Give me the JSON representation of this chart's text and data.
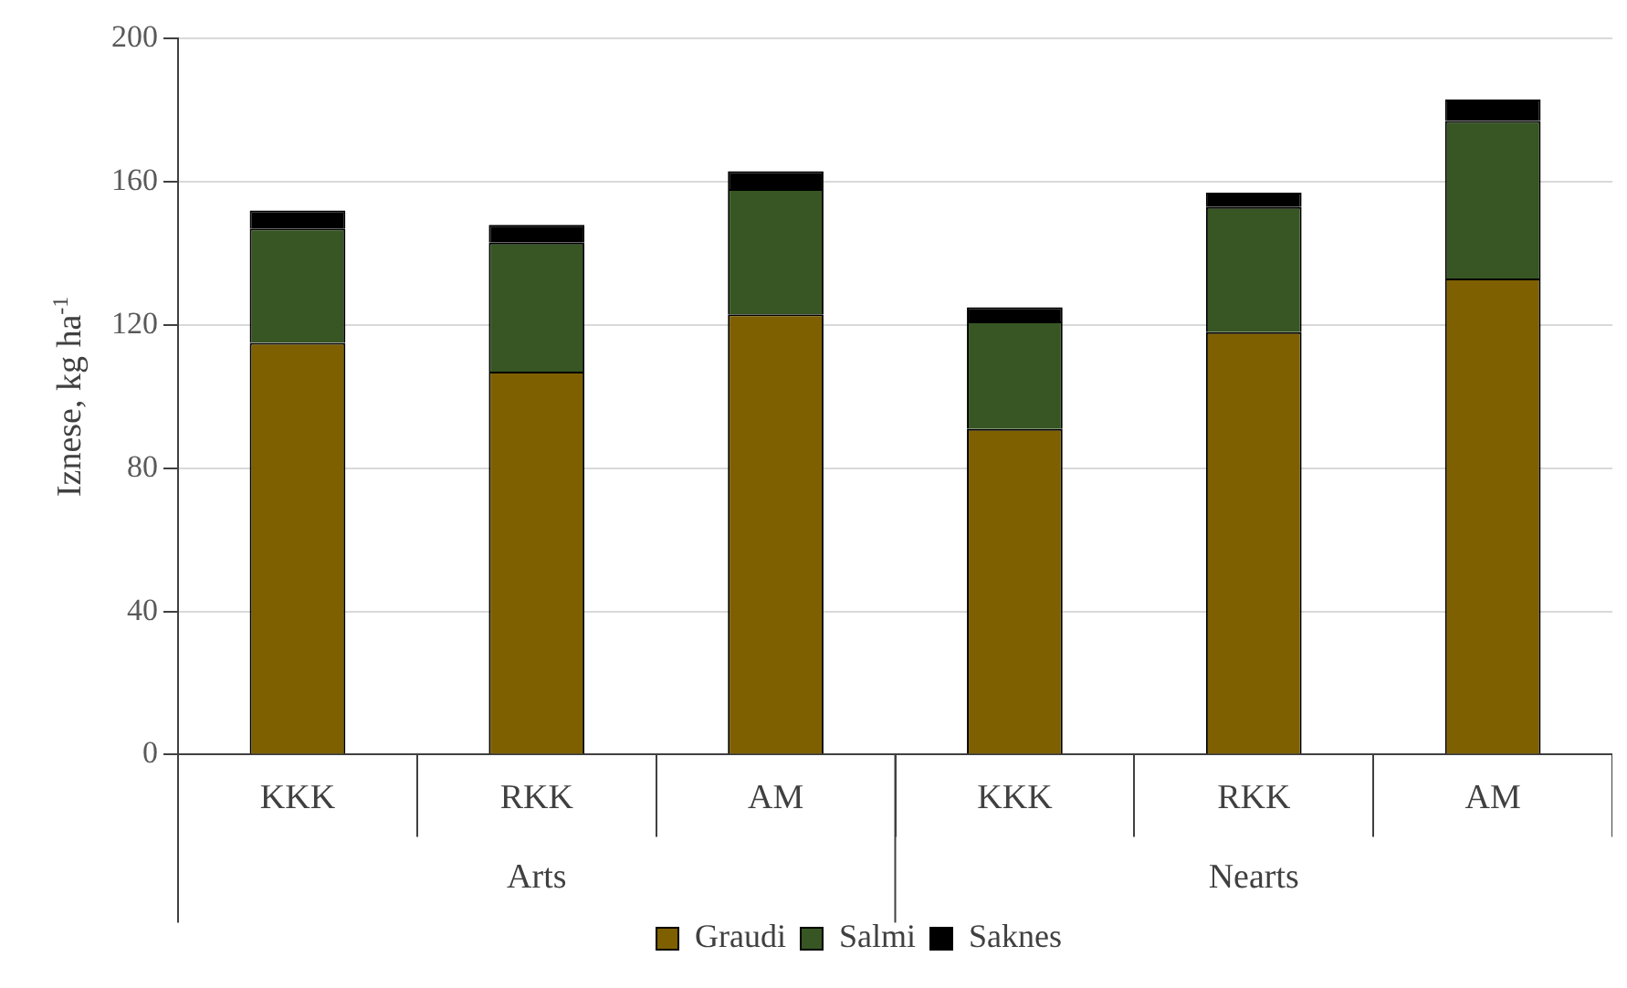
{
  "chart_data": {
    "type": "bar",
    "stacked": true,
    "ylabel": "Iznese, kg ha$^{-1}$",
    "categories": [
      "KKK",
      "RKK",
      "AM",
      "KKK",
      "RKK",
      "AM"
    ],
    "annotations": [
      "Arts",
      "Nearts"
    ],
    "series": [
      {
        "name": "Graudi",
        "color": "#7f6000",
        "values": [
          115,
          107,
          123,
          91,
          118,
          133
        ]
      },
      {
        "name": "Salmi",
        "color": "#375623",
        "values": [
          32,
          36,
          35,
          30,
          35,
          44
        ]
      },
      {
        "name": "Saknes",
        "color": "#000000",
        "values": [
          5,
          5,
          5,
          4,
          4,
          6
        ]
      }
    ],
    "ylim": [
      0,
      200
    ],
    "yticks": [
      0,
      40,
      80,
      120,
      160,
      200
    ],
    "grid": "y",
    "legend": "bottom"
  }
}
